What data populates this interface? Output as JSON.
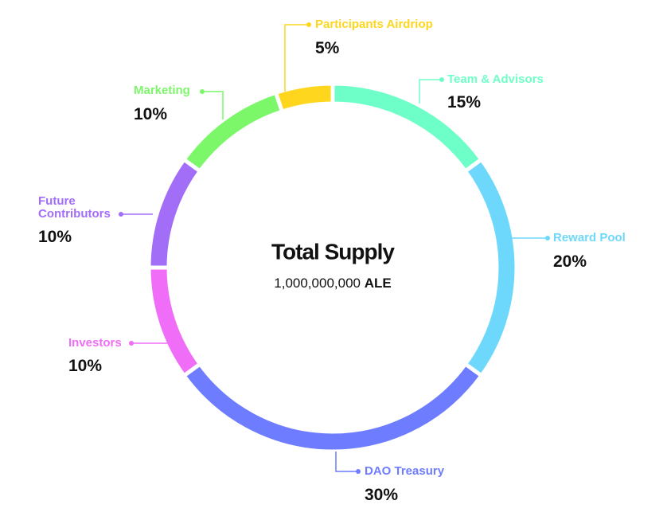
{
  "chart_data": {
    "type": "donut",
    "center_title": "Total Supply",
    "center_amount": "1,000,000,000",
    "center_unit": "ALE",
    "categories": [
      "Team & Advisors",
      "Reward Pool",
      "DAO Treasury",
      "Investors",
      "Future Contributors",
      "Marketing",
      "Participants Airdriop"
    ],
    "values": [
      15,
      20,
      30,
      10,
      10,
      10,
      5
    ],
    "value_labels": [
      "15%",
      "20%",
      "30%",
      "10%",
      "10%",
      "10%",
      "5%"
    ],
    "colors": [
      "#6effc8",
      "#6dd8fb",
      "#6e7cff",
      "#f06ef7",
      "#a36ef7",
      "#7cf76a",
      "#fed61d"
    ]
  }
}
